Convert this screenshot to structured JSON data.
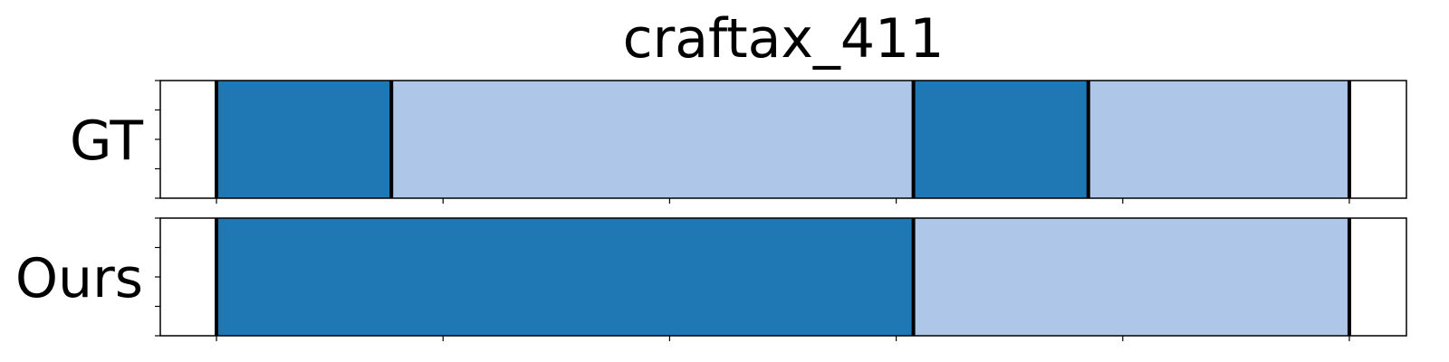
{
  "chart_data": {
    "type": "bar",
    "title": "craftax_411",
    "xlim": [
      0,
      1375
    ],
    "x_ticks": [
      62,
      312,
      562,
      812,
      1062,
      1312
    ],
    "y_ticks_per_row": 5,
    "rows": [
      {
        "label": "GT",
        "segments": [
          {
            "start": 62,
            "end": 255,
            "color": "#1f77b4"
          },
          {
            "start": 255,
            "end": 831,
            "color": "#aec7e8"
          },
          {
            "start": 831,
            "end": 1024,
            "color": "#1f77b4"
          },
          {
            "start": 1024,
            "end": 1312,
            "color": "#aec7e8"
          }
        ],
        "boundaries": [
          62,
          255,
          831,
          1024,
          1312
        ]
      },
      {
        "label": "Ours",
        "segments": [
          {
            "start": 62,
            "end": 831,
            "color": "#1f77b4"
          },
          {
            "start": 831,
            "end": 1312,
            "color": "#aec7e8"
          }
        ],
        "boundaries": [
          62,
          831,
          1312
        ]
      }
    ],
    "boundary_color": "#000000"
  }
}
